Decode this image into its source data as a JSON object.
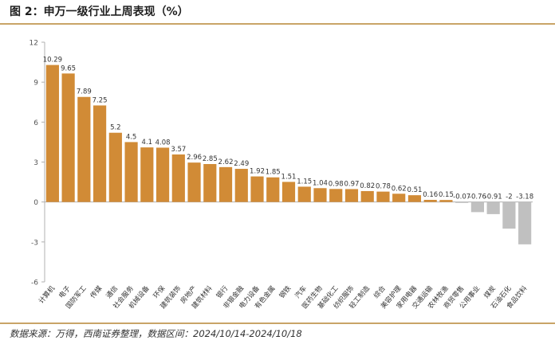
{
  "title": "图 2：申万一级行业上周表现（%）",
  "source": "数据来源：万得，西南证券整理，数据区间：2024/10/14-2024/10/18",
  "colors": {
    "positive": "#d18b36",
    "negative": "#c0c0c0",
    "axis": "#b0b0b0",
    "rule": "#c9a467"
  },
  "chart_data": {
    "type": "bar",
    "categories": [
      "计算机",
      "电子",
      "国防军工",
      "传媒",
      "通信",
      "社会服务",
      "机械设备",
      "环保",
      "建筑装饰",
      "房地产",
      "建筑材料",
      "银行",
      "非银金融",
      "电力设备",
      "有色金属",
      "钢铁",
      "汽车",
      "医药生物",
      "基础化工",
      "纺织服饰",
      "轻工制造",
      "综合",
      "美容护理",
      "家用电器",
      "交通运输",
      "农林牧渔",
      "商贸零售",
      "公用事业",
      "煤炭",
      "石油石化",
      "食品饮料"
    ],
    "values": [
      10.29,
      9.65,
      7.89,
      7.25,
      5.2,
      4.5,
      4.1,
      4.08,
      3.57,
      2.96,
      2.85,
      2.62,
      2.49,
      1.92,
      1.85,
      1.51,
      1.15,
      1.04,
      0.98,
      0.97,
      0.82,
      0.78,
      0.62,
      0.51,
      0.16,
      0.15,
      -0.07,
      -0.76,
      -0.91,
      -2,
      -3.18
    ],
    "value_labels": [
      "10.29",
      "9.65",
      "7.89",
      "7.25",
      "5.2",
      "4.5",
      "4.1",
      "4.08",
      "3.57",
      "2.96",
      "2.85",
      "2.62",
      "2.49",
      "1.92",
      "1.85",
      "1.51",
      "1.15",
      "1.04",
      "0.98",
      "0.97",
      "0.82",
      "0.78",
      "0.62",
      "0.51",
      "0.16",
      "0.15",
      "-0.07",
      "-0.76",
      "-0.91",
      "-2",
      "-3.18"
    ],
    "yticks": [
      "12",
      "9",
      "6",
      "3",
      "0",
      "-3",
      "-6"
    ],
    "ylim": [
      -6,
      12
    ],
    "title": "",
    "xlabel": "",
    "ylabel": ""
  }
}
